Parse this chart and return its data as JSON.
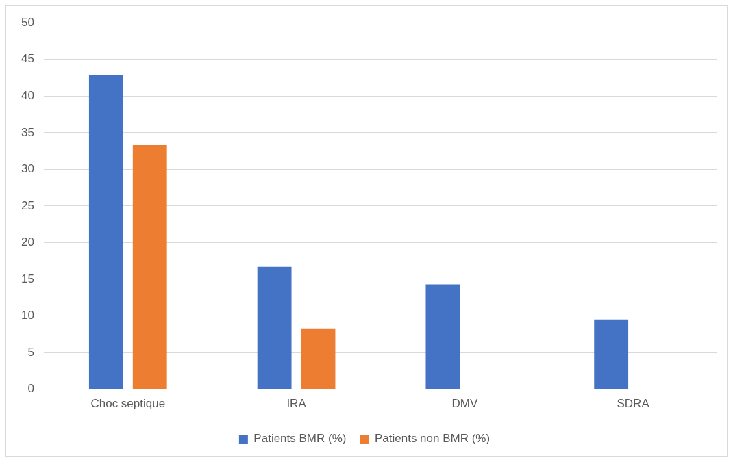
{
  "chart_data": {
    "type": "bar",
    "categories": [
      "Choc septique",
      "IRA",
      "DMV",
      "SDRA"
    ],
    "series": [
      {
        "name": "Patients BMR (%)",
        "color": "#4472c4",
        "values": [
          42.9,
          16.7,
          14.3,
          9.5
        ]
      },
      {
        "name": "Patients non BMR (%)",
        "color": "#ed7d31",
        "values": [
          33.3,
          8.3,
          0,
          0
        ]
      }
    ],
    "ylim": [
      0,
      50
    ],
    "yticks": [
      0,
      5,
      10,
      15,
      20,
      25,
      30,
      35,
      40,
      45,
      50
    ],
    "grid": "y",
    "legend": "bottom"
  }
}
